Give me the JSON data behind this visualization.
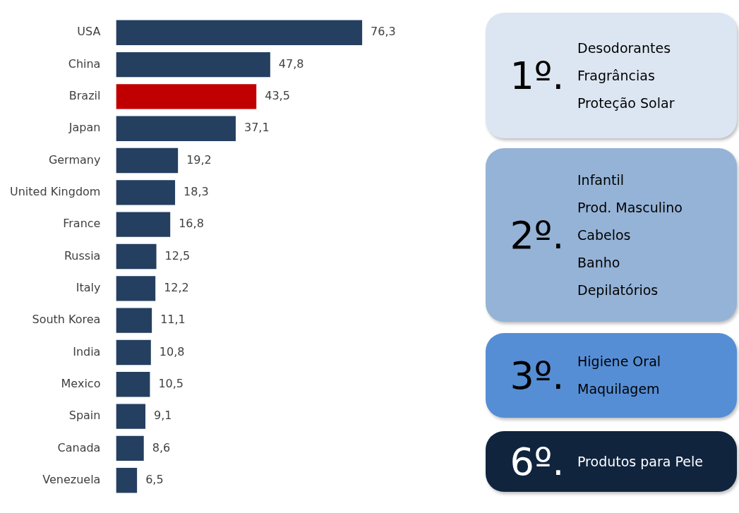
{
  "chart_data": [
    {
      "type": "bar",
      "orientation": "horizontal",
      "categories": [
        "USA",
        "China",
        "Brazil",
        "Japan",
        "Germany",
        "United Kingdom",
        "France",
        "Russia",
        "Italy",
        "South Korea",
        "India",
        "Mexico",
        "Spain",
        "Canada",
        "Venezuela"
      ],
      "values": [
        76.3,
        47.8,
        43.5,
        37.1,
        19.2,
        18.3,
        16.8,
        12.5,
        12.2,
        11.1,
        10.8,
        10.5,
        9.1,
        8.6,
        6.5
      ],
      "colors": [
        "#243f60",
        "#243f60",
        "#c00000",
        "#243f60",
        "#243f60",
        "#243f60",
        "#243f60",
        "#243f60",
        "#243f60",
        "#243f60",
        "#243f60",
        "#243f60",
        "#243f60",
        "#243f60",
        "#243f60"
      ],
      "value_labels": [
        "76,3",
        "47,8",
        "43,5",
        "37,1",
        "19,2",
        "18,3",
        "16,8",
        "12,5",
        "12,2",
        "11,1",
        "10,8",
        "10,5",
        "9,1",
        "8,6",
        "6,5"
      ]
    },
    {
      "type": "other",
      "title": "1º.",
      "color": "#dce6f2",
      "annotations": [
        "Desodorantes",
        "Fragrâncias",
        "Proteção Solar"
      ]
    },
    {
      "type": "other",
      "title": "2º.",
      "color": "#95b3d7",
      "annotations": [
        "Infantil",
        "Prod. Masculino",
        "Cabelos",
        "Banho",
        "Depilatórios"
      ]
    },
    {
      "type": "other",
      "title": "3º.",
      "color": "#558ed5",
      "annotations": [
        "Higiene Oral",
        "Maquilagem"
      ]
    },
    {
      "type": "other",
      "title": "6º.",
      "color": "#10243e",
      "annotations": [
        "Produtos para Pele"
      ]
    }
  ]
}
